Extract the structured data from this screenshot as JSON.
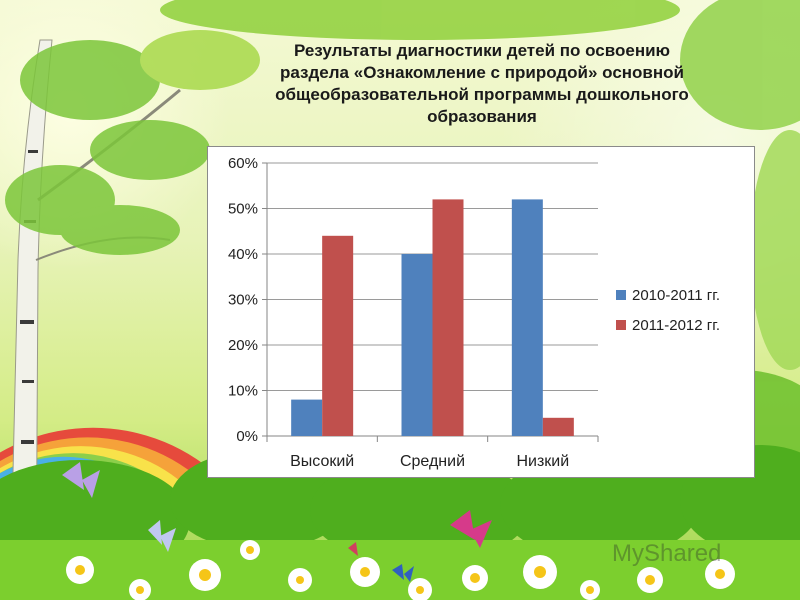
{
  "title_lines": [
    "Результаты диагностики детей по освоению",
    "раздела «Ознакомление с природой» основной",
    "общеобразовательной программы дошкольного",
    "образования"
  ],
  "chart_data": {
    "type": "bar",
    "categories": [
      "Высокий",
      "Средний",
      "Низкий"
    ],
    "series": [
      {
        "name": "2010-2011 гг.",
        "values": [
          8,
          40,
          52
        ],
        "color": "#4f81bd"
      },
      {
        "name": "2011-2012 гг.",
        "values": [
          44,
          52,
          4
        ],
        "color": "#c0504d"
      }
    ],
    "yticks": [
      "0%",
      "10%",
      "20%",
      "30%",
      "40%",
      "50%",
      "60%"
    ],
    "ylim": [
      0,
      60
    ],
    "unit": "%",
    "grid": true,
    "legend_position": "right"
  },
  "watermark": "MyShared"
}
